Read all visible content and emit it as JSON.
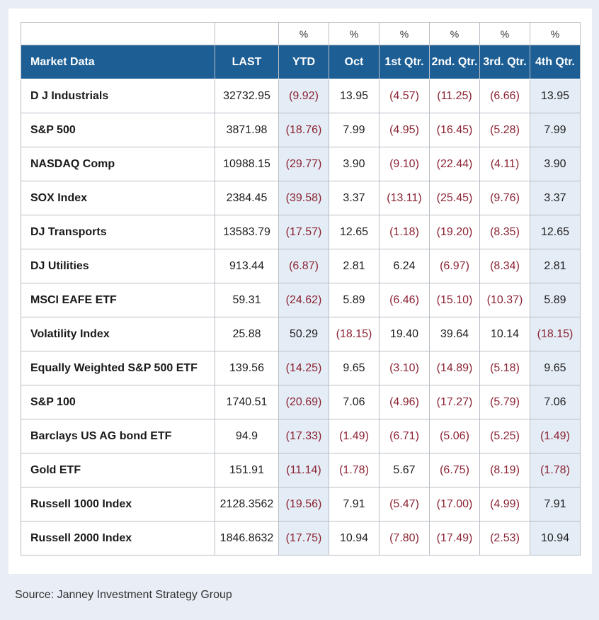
{
  "header": {
    "label": "Market Data",
    "columns": [
      "LAST",
      "YTD",
      "Oct",
      "1st Qtr.",
      "2nd. Qtr.",
      "3rd. Qtr.",
      "4th Qtr."
    ],
    "units": [
      "",
      "%",
      "%",
      "%",
      "%",
      "%",
      "%"
    ]
  },
  "rows": [
    {
      "name": "D J Industrials",
      "values": [
        "32732.95",
        "(9.92)",
        "13.95",
        "(4.57)",
        "(11.25)",
        "(6.66)",
        "13.95"
      ]
    },
    {
      "name": "S&P 500",
      "values": [
        "3871.98",
        "(18.76)",
        "7.99",
        "(4.95)",
        "(16.45)",
        "(5.28)",
        "7.99"
      ]
    },
    {
      "name": "NASDAQ Comp",
      "values": [
        "10988.15",
        "(29.77)",
        "3.90",
        "(9.10)",
        "(22.44)",
        "(4.11)",
        "3.90"
      ]
    },
    {
      "name": "SOX Index",
      "values": [
        "2384.45",
        "(39.58)",
        "3.37",
        "(13.11)",
        "(25.45)",
        "(9.76)",
        "3.37"
      ]
    },
    {
      "name": "DJ Transports",
      "values": [
        "13583.79",
        "(17.57)",
        "12.65",
        "(1.18)",
        "(19.20)",
        "(8.35)",
        "12.65"
      ]
    },
    {
      "name": "DJ Utilities",
      "values": [
        "913.44",
        "(6.87)",
        "2.81",
        "6.24",
        "(6.97)",
        "(8.34)",
        "2.81"
      ]
    },
    {
      "name": "MSCI EAFE ETF",
      "values": [
        "59.31",
        "(24.62)",
        "5.89",
        "(6.46)",
        "(15.10)",
        "(10.37)",
        "5.89"
      ]
    },
    {
      "name": "Volatility Index",
      "values": [
        "25.88",
        "50.29",
        "(18.15)",
        "19.40",
        "39.64",
        "10.14",
        "(18.15)"
      ]
    },
    {
      "name": "Equally Weighted S&P 500 ETF",
      "values": [
        "139.56",
        "(14.25)",
        "9.65",
        "(3.10)",
        "(14.89)",
        "(5.18)",
        "9.65"
      ]
    },
    {
      "name": "S&P 100",
      "values": [
        "1740.51",
        "(20.69)",
        "7.06",
        "(4.96)",
        "(17.27)",
        "(5.79)",
        "7.06"
      ]
    },
    {
      "name": "Barclays US AG bond ETF",
      "values": [
        "94.9",
        "(17.33)",
        "(1.49)",
        "(6.71)",
        "(5.06)",
        "(5.25)",
        "(1.49)"
      ]
    },
    {
      "name": "Gold ETF",
      "values": [
        "151.91",
        "(11.14)",
        "(1.78)",
        "5.67",
        "(6.75)",
        "(8.19)",
        "(1.78)"
      ]
    },
    {
      "name": "Russell 1000 Index",
      "values": [
        "2128.3562",
        "(19.56)",
        "7.91",
        "(5.47)",
        "(17.00)",
        "(4.99)",
        "7.91"
      ]
    },
    {
      "name": "Russell 2000 Index",
      "values": [
        "1846.8632",
        "(17.75)",
        "10.94",
        "(7.80)",
        "(17.49)",
        "(2.53)",
        "10.94"
      ]
    }
  ],
  "source": "Source: Janney Investment Strategy Group",
  "colors": {
    "header_bg": "#1d5f95",
    "shaded_column_bg": "#e4ecf5",
    "negative_text": "#8b2333",
    "page_bg": "#e9eef6"
  }
}
